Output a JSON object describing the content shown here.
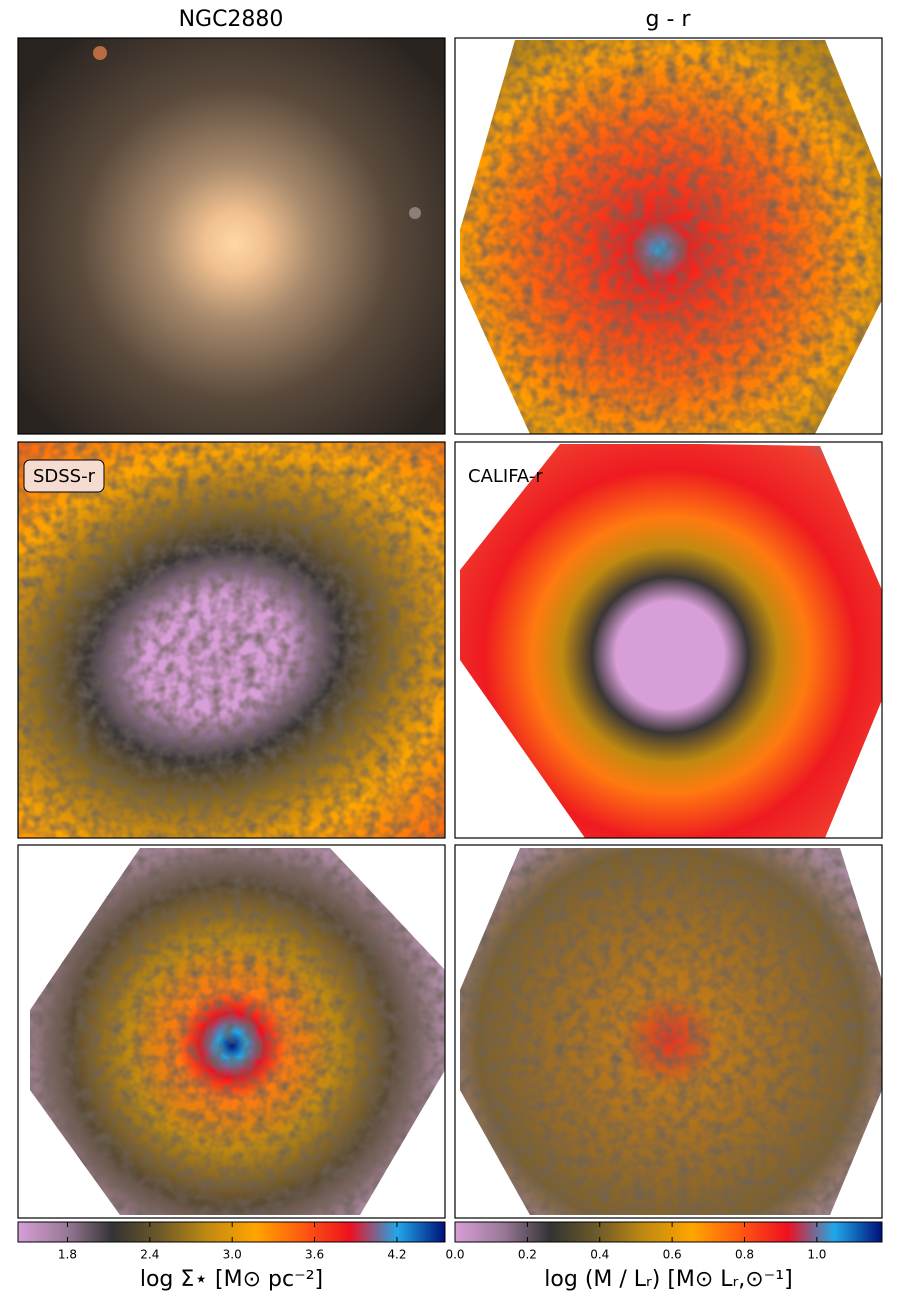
{
  "panels": {
    "title_left": "NGC2880",
    "title_right": "g - r",
    "label_sdss": "SDSS-r",
    "label_califa": "CALIFA-r"
  },
  "chart_data": [
    {
      "type": "colorbar",
      "xlim": [
        1.44,
        4.55
      ],
      "xticks": [
        1.8,
        2.4,
        {
          "value": 3,
          "label": "3.0"
        },
        3.6,
        4.2
      ],
      "xlabel": "log Σ⋆ [M⊙ pc⁻²]",
      "colormap": [
        "#d89ed8",
        "#9a7a98",
        "#333333",
        "#6e5a2a",
        "#c08a10",
        "#ffa500",
        "#ff5a10",
        "#ee1020",
        "#20a8e8",
        "#00107a"
      ]
    },
    {
      "type": "colorbar",
      "xlim": [
        0,
        1.18
      ],
      "xticks": [
        {
          "value": 0,
          "label": "0.0"
        },
        0.2,
        0.4,
        0.6,
        0.8,
        {
          "value": 1,
          "label": "1.0"
        }
      ],
      "xlabel": "log (M / Lᵣ) [M⊙ Lᵣ,⊙⁻¹]",
      "colormap": [
        "#d89ed8",
        "#9a7a98",
        "#333333",
        "#6e5a2a",
        "#c08a10",
        "#ffa500",
        "#ff5a10",
        "#ee1020",
        "#20a8e8",
        "#00107a"
      ]
    }
  ]
}
